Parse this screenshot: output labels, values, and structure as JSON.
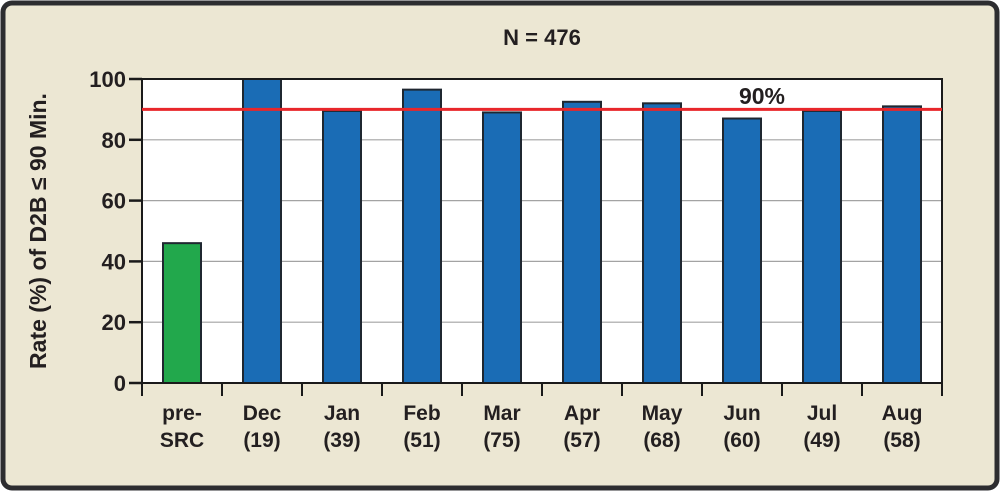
{
  "panel": {
    "background_color": "#ece7d3",
    "border_color": "#2d2d30"
  },
  "chart_data": {
    "type": "bar",
    "title": "N = 476",
    "ylabel": "Rate (%) of D2B ≤ 90 Min.",
    "xlabel": "",
    "ylim": [
      0,
      100
    ],
    "yticks": [
      0,
      20,
      40,
      60,
      80,
      100
    ],
    "grid": "horizontal gridlines at 20, 40, 60, 80; plot area framed in black",
    "legend": "none",
    "categories": [
      "pre-SRC",
      "Dec (19)",
      "Jan (39)",
      "Feb (51)",
      "Mar (75)",
      "Apr (57)",
      "May (68)",
      "Jun (60)",
      "Jul (49)",
      "Aug (58)"
    ],
    "values": [
      46,
      100,
      89.5,
      96.5,
      89,
      92.5,
      92,
      87,
      89.5,
      91
    ],
    "bars": [
      {
        "label": "pre-",
        "sublabel": "SRC",
        "value": 46,
        "color": "#22a84c"
      },
      {
        "label": "Dec",
        "sublabel": "(19)",
        "value": 100,
        "color": "#1a6cb5"
      },
      {
        "label": "Jan",
        "sublabel": "(39)",
        "value": 89.5,
        "color": "#1a6cb5"
      },
      {
        "label": "Feb",
        "sublabel": "(51)",
        "value": 96.5,
        "color": "#1a6cb5"
      },
      {
        "label": "Mar",
        "sublabel": "(75)",
        "value": 89,
        "color": "#1a6cb5"
      },
      {
        "label": "Apr",
        "sublabel": "(57)",
        "value": 92.5,
        "color": "#1a6cb5"
      },
      {
        "label": "May",
        "sublabel": "(68)",
        "value": 92,
        "color": "#1a6cb5"
      },
      {
        "label": "Jun",
        "sublabel": "(60)",
        "value": 87,
        "color": "#1a6cb5"
      },
      {
        "label": "Jul",
        "sublabel": "(49)",
        "value": 89.5,
        "color": "#1a6cb5"
      },
      {
        "label": "Aug",
        "sublabel": "(58)",
        "value": 91,
        "color": "#1a6cb5"
      }
    ],
    "reference_line": {
      "value": 90,
      "label": "90%",
      "color": "#e8262a"
    },
    "colors": {
      "default_bar": "#1a6cb5",
      "highlight_bar": "#22a84c",
      "bar_outline": "#1f2730",
      "plot_background": "#ffffff",
      "gridline": "#a3a3a3",
      "axis": "#1a1a1a",
      "text": "#231f20"
    }
  }
}
